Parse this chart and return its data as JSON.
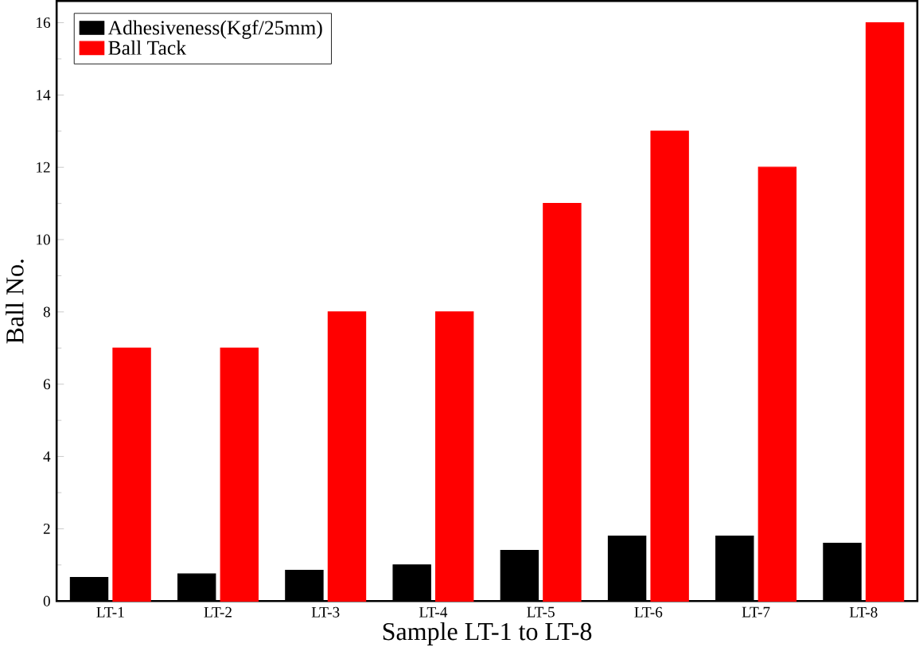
{
  "chart_data": {
    "type": "bar",
    "xlabel": "Sample LT-1 to LT-8",
    "ylabel": "Ball No.",
    "categories": [
      "LT-1",
      "LT-2",
      "LT-3",
      "LT-4",
      "LT-5",
      "LT-6",
      "LT-7",
      "LT-8"
    ],
    "series": [
      {
        "name": "Adhesiveness(Kgf/25mm)",
        "color": "#000000",
        "values": [
          0.65,
          0.75,
          0.85,
          1.0,
          1.4,
          1.8,
          1.8,
          1.6
        ]
      },
      {
        "name": "Ball Tack",
        "color": "#ff0000",
        "values": [
          7,
          7,
          8,
          8,
          11,
          13,
          12,
          16
        ]
      }
    ],
    "ylim": [
      0,
      16.6
    ],
    "yticks": [
      0,
      2,
      4,
      6,
      8,
      10,
      12,
      14,
      16
    ],
    "legend": "top left",
    "grid": false
  }
}
